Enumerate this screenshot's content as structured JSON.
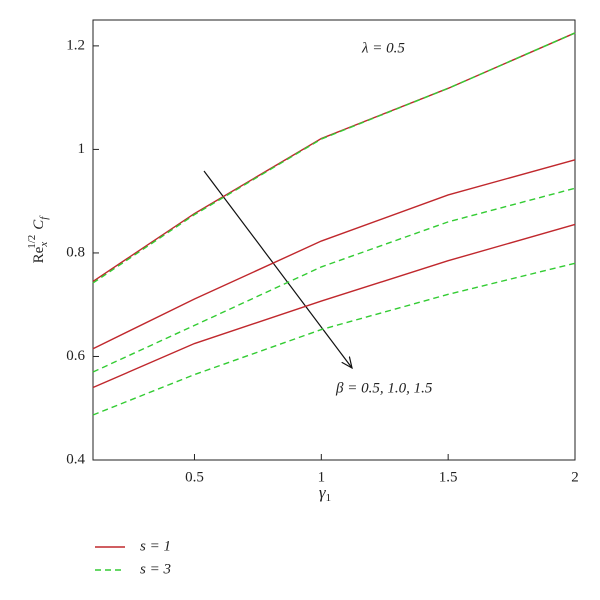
{
  "chart_data": {
    "type": "line",
    "xlabel": {
      "base": "γ",
      "sub": "1"
    },
    "ylabel": {
      "base": "Re",
      "sub": "x",
      "sup": "1/2",
      "factor": "C",
      "factor_sub": "f"
    },
    "annotations": [
      "λ = 0.5",
      "β = 0.5, 1.0, 1.5"
    ],
    "x": [
      0.1,
      0.5,
      1,
      1.5,
      2
    ],
    "series": [
      {
        "name": "s = 1",
        "color": "#c0282d",
        "dashed": false,
        "curves": [
          [
            0.745,
            0.876,
            1.021,
            1.118,
            1.225
          ],
          [
            0.615,
            0.711,
            0.823,
            0.912,
            0.98
          ],
          [
            0.54,
            0.625,
            0.707,
            0.785,
            0.855
          ]
        ]
      },
      {
        "name": "s = 3",
        "color": "#33cc33",
        "dashed": true,
        "curves": [
          [
            0.742,
            0.874,
            1.02,
            1.118,
            1.225
          ],
          [
            0.57,
            0.66,
            0.773,
            0.86,
            0.925
          ],
          [
            0.487,
            0.565,
            0.652,
            0.72,
            0.78
          ]
        ]
      }
    ],
    "xlim": [
      0.1,
      2
    ],
    "ylim": [
      0.4,
      1.25
    ],
    "xticks": [
      0.5,
      1,
      1.5,
      2
    ],
    "yticks": [
      0.4,
      0.6,
      0.8,
      1,
      1.2
    ]
  }
}
